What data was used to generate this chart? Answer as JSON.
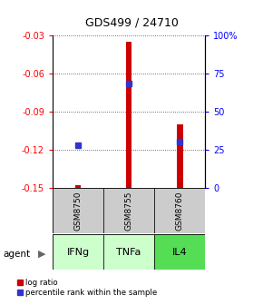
{
  "title": "GDS499 / 24710",
  "samples": [
    "GSM8750",
    "GSM8755",
    "GSM8760"
  ],
  "agents": [
    "IFNg",
    "TNFa",
    "IL4"
  ],
  "log_ratios": [
    -0.148,
    -0.035,
    -0.1
  ],
  "percentile_ranks": [
    28,
    68,
    30
  ],
  "ylim_left": [
    -0.15,
    -0.03
  ],
  "ylim_right": [
    0,
    100
  ],
  "yticks_left": [
    -0.15,
    -0.12,
    -0.09,
    -0.06,
    -0.03
  ],
  "yticks_right": [
    0,
    25,
    50,
    75,
    100
  ],
  "ytick_labels_left": [
    "-0.15",
    "-0.12",
    "-0.09",
    "-0.06",
    "-0.03"
  ],
  "ytick_labels_right": [
    "0",
    "25",
    "50",
    "75",
    "100%"
  ],
  "bar_color": "#cc0000",
  "square_color": "#3333cc",
  "bar_width": 0.12,
  "agent_colors": [
    "#ccffcc",
    "#ccffcc",
    "#55dd55"
  ],
  "sample_bg": "#cccccc",
  "grid_color": "#444444",
  "title_fontsize": 9,
  "tick_fontsize": 7,
  "label_fontsize": 8
}
